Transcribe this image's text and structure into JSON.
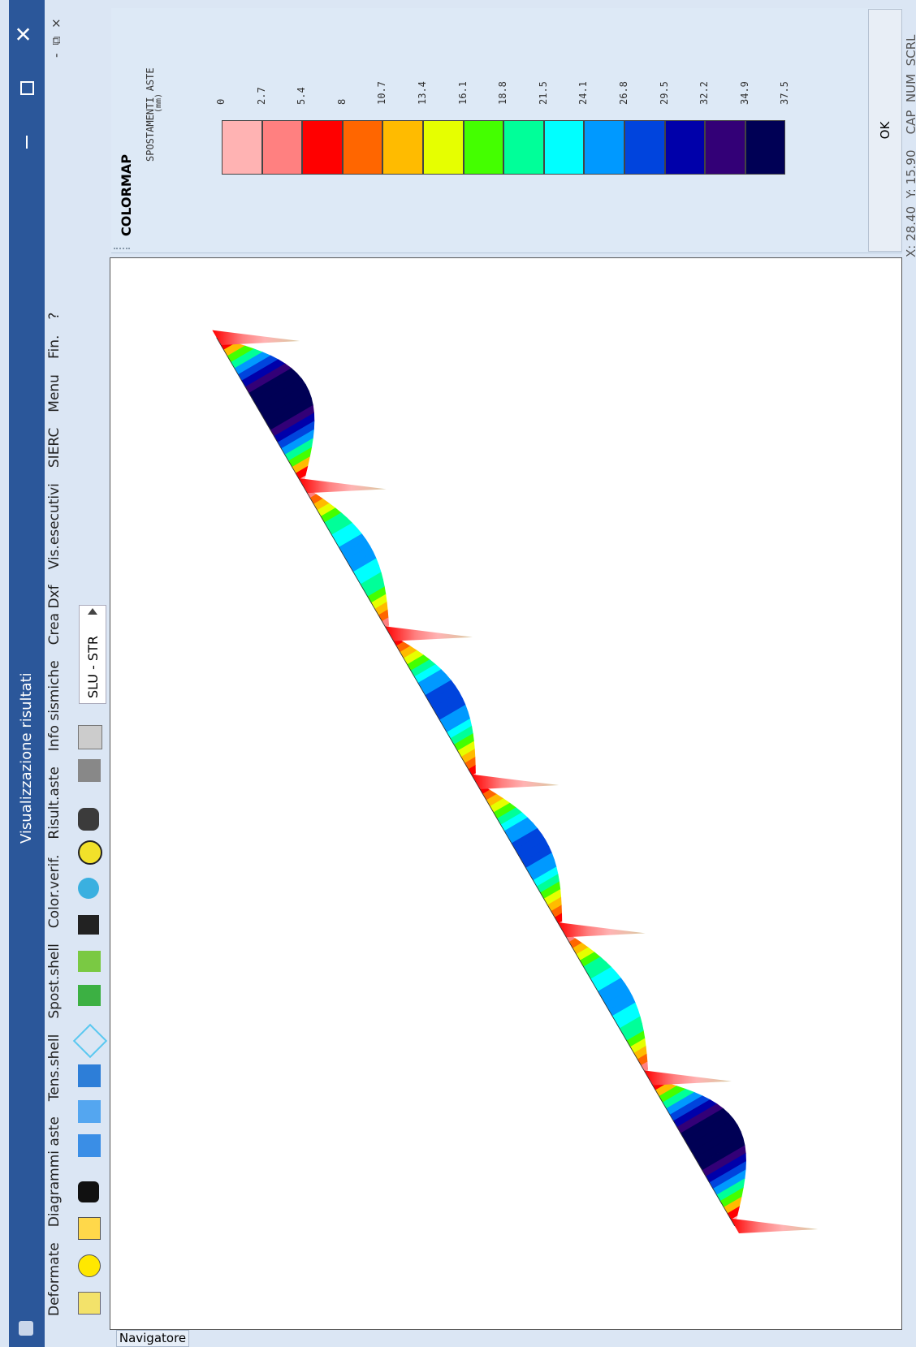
{
  "window": {
    "title": "Visualizzazione risultati"
  },
  "menu": [
    "Deformate",
    "Diagrammi aste",
    "Tens.shell",
    "Spost.shell",
    "Color.verif.",
    "Risult.aste",
    "Info sismiche",
    "Crea Dxf",
    "Vis.esecutivi",
    "SIERC",
    "Menu",
    "Fin.",
    "?"
  ],
  "toolbar": {
    "combo": "SLU - STR"
  },
  "colormap": {
    "title": "COLORMAP",
    "quantity": "SPOSTAMENTI ASTE",
    "unit": "(mm)",
    "legend": [
      {
        "label": "0",
        "color": "#ffb3b3"
      },
      {
        "label": "2.7",
        "color": "#ff8080"
      },
      {
        "label": "5.4",
        "color": "#ff0000"
      },
      {
        "label": "8",
        "color": "#ff6600"
      },
      {
        "label": "10.7",
        "color": "#ffbb00"
      },
      {
        "label": "13.4",
        "color": "#e6ff00"
      },
      {
        "label": "16.1",
        "color": "#44ff00"
      },
      {
        "label": "18.8",
        "color": "#00ff99"
      },
      {
        "label": "21.5",
        "color": "#00ffff"
      },
      {
        "label": "24.1",
        "color": "#0099ff"
      },
      {
        "label": "26.8",
        "color": "#0044dd"
      },
      {
        "label": "29.5",
        "color": "#0000aa"
      },
      {
        "label": "32.2",
        "color": "#330077"
      },
      {
        "label": "34.9",
        "color": "#000055"
      }
    ],
    "legend_last": "37.5",
    "ok": "OK"
  },
  "status": "X: 28.40  Y: 15.90    CAP  NUM  SCRL",
  "tab": "Navigatore"
}
